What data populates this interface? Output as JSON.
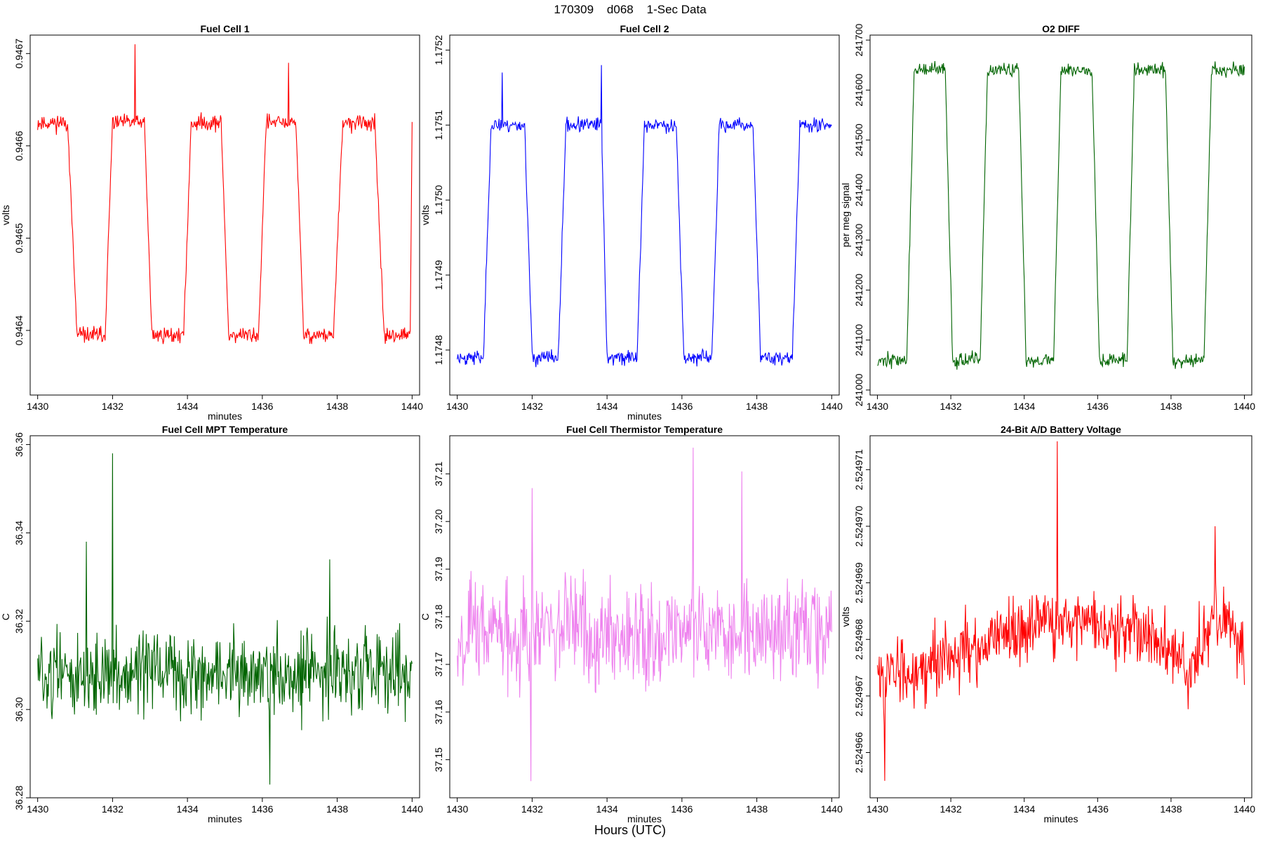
{
  "figure": {
    "title": "170309    d068    1-Sec Data",
    "bottom_label": "Hours (UTC)"
  },
  "chart_data": [
    {
      "type": "line",
      "title": "Fuel Cell 1",
      "xlabel": "minutes",
      "ylabel": "volts",
      "color": "#ff0000",
      "xlim": [
        1429.8,
        1440.2
      ],
      "ylim": [
        0.94633,
        0.94672
      ],
      "xticks": [
        1430,
        1432,
        1434,
        1436,
        1438,
        1440
      ],
      "xtick_labels": [
        "1430",
        "1432",
        "1434",
        "1436",
        "1438",
        "1440"
      ],
      "yticks": [
        0.9464,
        0.9465,
        0.9466,
        0.9467
      ],
      "ytick_labels": [
        "0.9464",
        "0.9465",
        "0.9466",
        "0.9467"
      ],
      "pattern": {
        "kind": "square",
        "high": 0.946625,
        "low": 0.946395,
        "edges": [
          [
            1430.0,
            1430.8,
            "high"
          ],
          [
            1430.8,
            1431.05,
            "fall"
          ],
          [
            1431.05,
            1431.8,
            "low"
          ],
          [
            1431.8,
            1432.0,
            "rise"
          ],
          [
            1432.0,
            1432.85,
            "high"
          ],
          [
            1432.85,
            1433.05,
            "fall"
          ],
          [
            1433.05,
            1433.9,
            "low"
          ],
          [
            1433.9,
            1434.1,
            "rise"
          ],
          [
            1434.1,
            1434.9,
            "high"
          ],
          [
            1434.9,
            1435.1,
            "fall"
          ],
          [
            1435.1,
            1435.9,
            "low"
          ],
          [
            1435.9,
            1436.1,
            "rise"
          ],
          [
            1436.1,
            1436.9,
            "high"
          ],
          [
            1436.9,
            1437.1,
            "fall"
          ],
          [
            1437.1,
            1437.9,
            "low"
          ],
          [
            1437.9,
            1438.15,
            "rise"
          ],
          [
            1438.15,
            1439.0,
            "high"
          ],
          [
            1439.0,
            1439.25,
            "fall"
          ],
          [
            1439.25,
            1439.95,
            "low"
          ],
          [
            1439.95,
            1440.0,
            "rise"
          ]
        ],
        "noise": 8.5e-06,
        "seed": 11
      },
      "peaks": [
        [
          1432.6,
          0.94671
        ],
        [
          1436.7,
          0.94669
        ]
      ]
    },
    {
      "type": "line",
      "title": "Fuel Cell 2",
      "xlabel": "minutes",
      "ylabel": "volts",
      "color": "#0000ff",
      "xlim": [
        1429.8,
        1440.2
      ],
      "ylim": [
        1.17474,
        1.17522
      ],
      "xticks": [
        1430,
        1432,
        1434,
        1436,
        1438,
        1440
      ],
      "xtick_labels": [
        "1430",
        "1432",
        "1434",
        "1436",
        "1438",
        "1440"
      ],
      "yticks": [
        1.1748,
        1.1749,
        1.175,
        1.1751,
        1.1752
      ],
      "ytick_labels": [
        "1.1748",
        "1.1749",
        "1.1750",
        "1.1751",
        "1.1752"
      ],
      "pattern": {
        "kind": "square",
        "high": 1.1751,
        "low": 1.17479,
        "edges": [
          [
            1430.0,
            1430.7,
            "low"
          ],
          [
            1430.7,
            1430.9,
            "rise"
          ],
          [
            1430.9,
            1431.8,
            "high"
          ],
          [
            1431.8,
            1432.0,
            "fall"
          ],
          [
            1432.0,
            1432.7,
            "low"
          ],
          [
            1432.7,
            1432.9,
            "rise"
          ],
          [
            1432.9,
            1433.85,
            "high"
          ],
          [
            1433.85,
            1434.0,
            "fall"
          ],
          [
            1434.0,
            1434.8,
            "low"
          ],
          [
            1434.8,
            1435.0,
            "rise"
          ],
          [
            1435.0,
            1435.85,
            "high"
          ],
          [
            1435.85,
            1436.05,
            "fall"
          ],
          [
            1436.05,
            1436.8,
            "low"
          ],
          [
            1436.8,
            1437.0,
            "rise"
          ],
          [
            1437.0,
            1437.9,
            "high"
          ],
          [
            1437.9,
            1438.1,
            "fall"
          ],
          [
            1438.1,
            1438.95,
            "low"
          ],
          [
            1438.95,
            1439.15,
            "rise"
          ],
          [
            1439.15,
            1440.0,
            "high"
          ]
        ],
        "noise": 9.5e-06,
        "seed": 23
      },
      "peaks": [
        [
          1431.2,
          1.17517
        ],
        [
          1433.85,
          1.17518
        ]
      ]
    },
    {
      "type": "line",
      "title": "O2 DIFF",
      "xlabel": "",
      "ylabel": "per meg signal",
      "color": "#006400",
      "xlim": [
        1429.8,
        1440.2
      ],
      "ylim": [
        240990,
        241710
      ],
      "xticks": [
        1430,
        1432,
        1434,
        1436,
        1438,
        1440
      ],
      "xtick_labels": [
        "1430",
        "1432",
        "1434",
        "1436",
        "1438",
        "1440"
      ],
      "yticks": [
        241000,
        241100,
        241200,
        241300,
        241400,
        241500,
        241600,
        241700
      ],
      "ytick_labels": [
        "241000",
        "241100",
        "241200",
        "241300",
        "241400",
        "241500",
        "241600",
        "241700"
      ],
      "pattern": {
        "kind": "square",
        "high": 241640,
        "low": 241060,
        "edges": [
          [
            1430.0,
            1430.8,
            "low"
          ],
          [
            1430.8,
            1431.0,
            "rise"
          ],
          [
            1431.0,
            1431.85,
            "high"
          ],
          [
            1431.85,
            1432.05,
            "fall"
          ],
          [
            1432.05,
            1432.8,
            "low"
          ],
          [
            1432.8,
            1433.0,
            "rise"
          ],
          [
            1433.0,
            1433.85,
            "high"
          ],
          [
            1433.85,
            1434.05,
            "fall"
          ],
          [
            1434.05,
            1434.8,
            "low"
          ],
          [
            1434.8,
            1435.0,
            "rise"
          ],
          [
            1435.0,
            1435.85,
            "high"
          ],
          [
            1435.85,
            1436.05,
            "fall"
          ],
          [
            1436.05,
            1436.8,
            "low"
          ],
          [
            1436.8,
            1437.0,
            "rise"
          ],
          [
            1437.0,
            1437.85,
            "high"
          ],
          [
            1437.85,
            1438.05,
            "fall"
          ],
          [
            1438.05,
            1438.9,
            "low"
          ],
          [
            1438.9,
            1439.1,
            "rise"
          ],
          [
            1439.1,
            1440.0,
            "high"
          ]
        ],
        "noise": 14,
        "seed": 37
      },
      "peaks": []
    },
    {
      "type": "line",
      "title": "Fuel Cell MPT Temperature",
      "xlabel": "minutes",
      "ylabel": "C",
      "color": "#006400",
      "xlim": [
        1429.8,
        1440.2
      ],
      "ylim": [
        36.28,
        36.362
      ],
      "xticks": [
        1430,
        1432,
        1434,
        1436,
        1438,
        1440
      ],
      "xtick_labels": [
        "1430",
        "1432",
        "1434",
        "1436",
        "1438",
        "1440"
      ],
      "yticks": [
        36.28,
        36.3,
        36.32,
        36.34,
        36.36
      ],
      "ytick_labels": [
        "36.28",
        "36.30",
        "36.32",
        "36.34",
        "36.36"
      ],
      "pattern": {
        "kind": "noise",
        "mean": 36.308,
        "amp": 0.009,
        "seed": 51
      },
      "peaks": [
        [
          1432.0,
          36.358
        ],
        [
          1431.3,
          36.338
        ],
        [
          1437.8,
          36.334
        ],
        [
          1436.2,
          36.283
        ]
      ]
    },
    {
      "type": "line",
      "title": "Fuel Cell Thermistor Temperature",
      "xlabel": "minutes",
      "ylabel": "C",
      "color": "#ee82ee",
      "xlim": [
        1429.8,
        1440.2
      ],
      "ylim": [
        37.142,
        37.218
      ],
      "xticks": [
        1430,
        1432,
        1434,
        1436,
        1438,
        1440
      ],
      "xtick_labels": [
        "1430",
        "1432",
        "1434",
        "1436",
        "1438",
        "1440"
      ],
      "yticks": [
        37.15,
        37.16,
        37.17,
        37.18,
        37.19,
        37.2,
        37.21
      ],
      "ytick_labels": [
        "37.15",
        "37.16",
        "37.17",
        "37.18",
        "37.19",
        "37.20",
        "37.21"
      ],
      "pattern": {
        "kind": "noise",
        "mean": 37.177,
        "amp": 0.011,
        "seed": 67
      },
      "peaks": [
        [
          1436.3,
          37.2155
        ],
        [
          1431.97,
          37.1455
        ],
        [
          1437.6,
          37.2105
        ],
        [
          1432.0,
          37.207
        ]
      ]
    },
    {
      "type": "line",
      "title": "24-Bit A/D Battery Voltage",
      "xlabel": "minutes",
      "ylabel": "volts",
      "color": "#ff0000",
      "xlim": [
        1429.8,
        1440.2
      ],
      "ylim": [
        2.5249652,
        2.5249716
      ],
      "xticks": [
        1430,
        1432,
        1434,
        1436,
        1438,
        1440
      ],
      "xtick_labels": [
        "1430",
        "1432",
        "1434",
        "1436",
        "1438",
        "1440"
      ],
      "yticks": [
        2.524966,
        2.524967,
        2.524968,
        2.524969,
        2.52497,
        2.524971
      ],
      "ytick_labels": [
        "2.524966",
        "2.524967",
        "2.524968",
        "2.524969",
        "2.524970",
        "2.524971"
      ],
      "pattern": {
        "kind": "noise",
        "mean": 2.5249679,
        "amp": 6e-07,
        "seed": 83,
        "trend": [
          [
            1430,
            -6e-07
          ],
          [
            1433,
            0.0
          ],
          [
            1435,
            5e-07
          ],
          [
            1437,
            3e-07
          ],
          [
            1438.6,
            -4e-07
          ],
          [
            1439.2,
            6e-07
          ],
          [
            1440,
            0.0
          ]
        ]
      },
      "peaks": [
        [
          1434.9,
          2.5249715
        ],
        [
          1439.2,
          2.52497
        ],
        [
          1430.2,
          2.5249655
        ]
      ]
    }
  ]
}
